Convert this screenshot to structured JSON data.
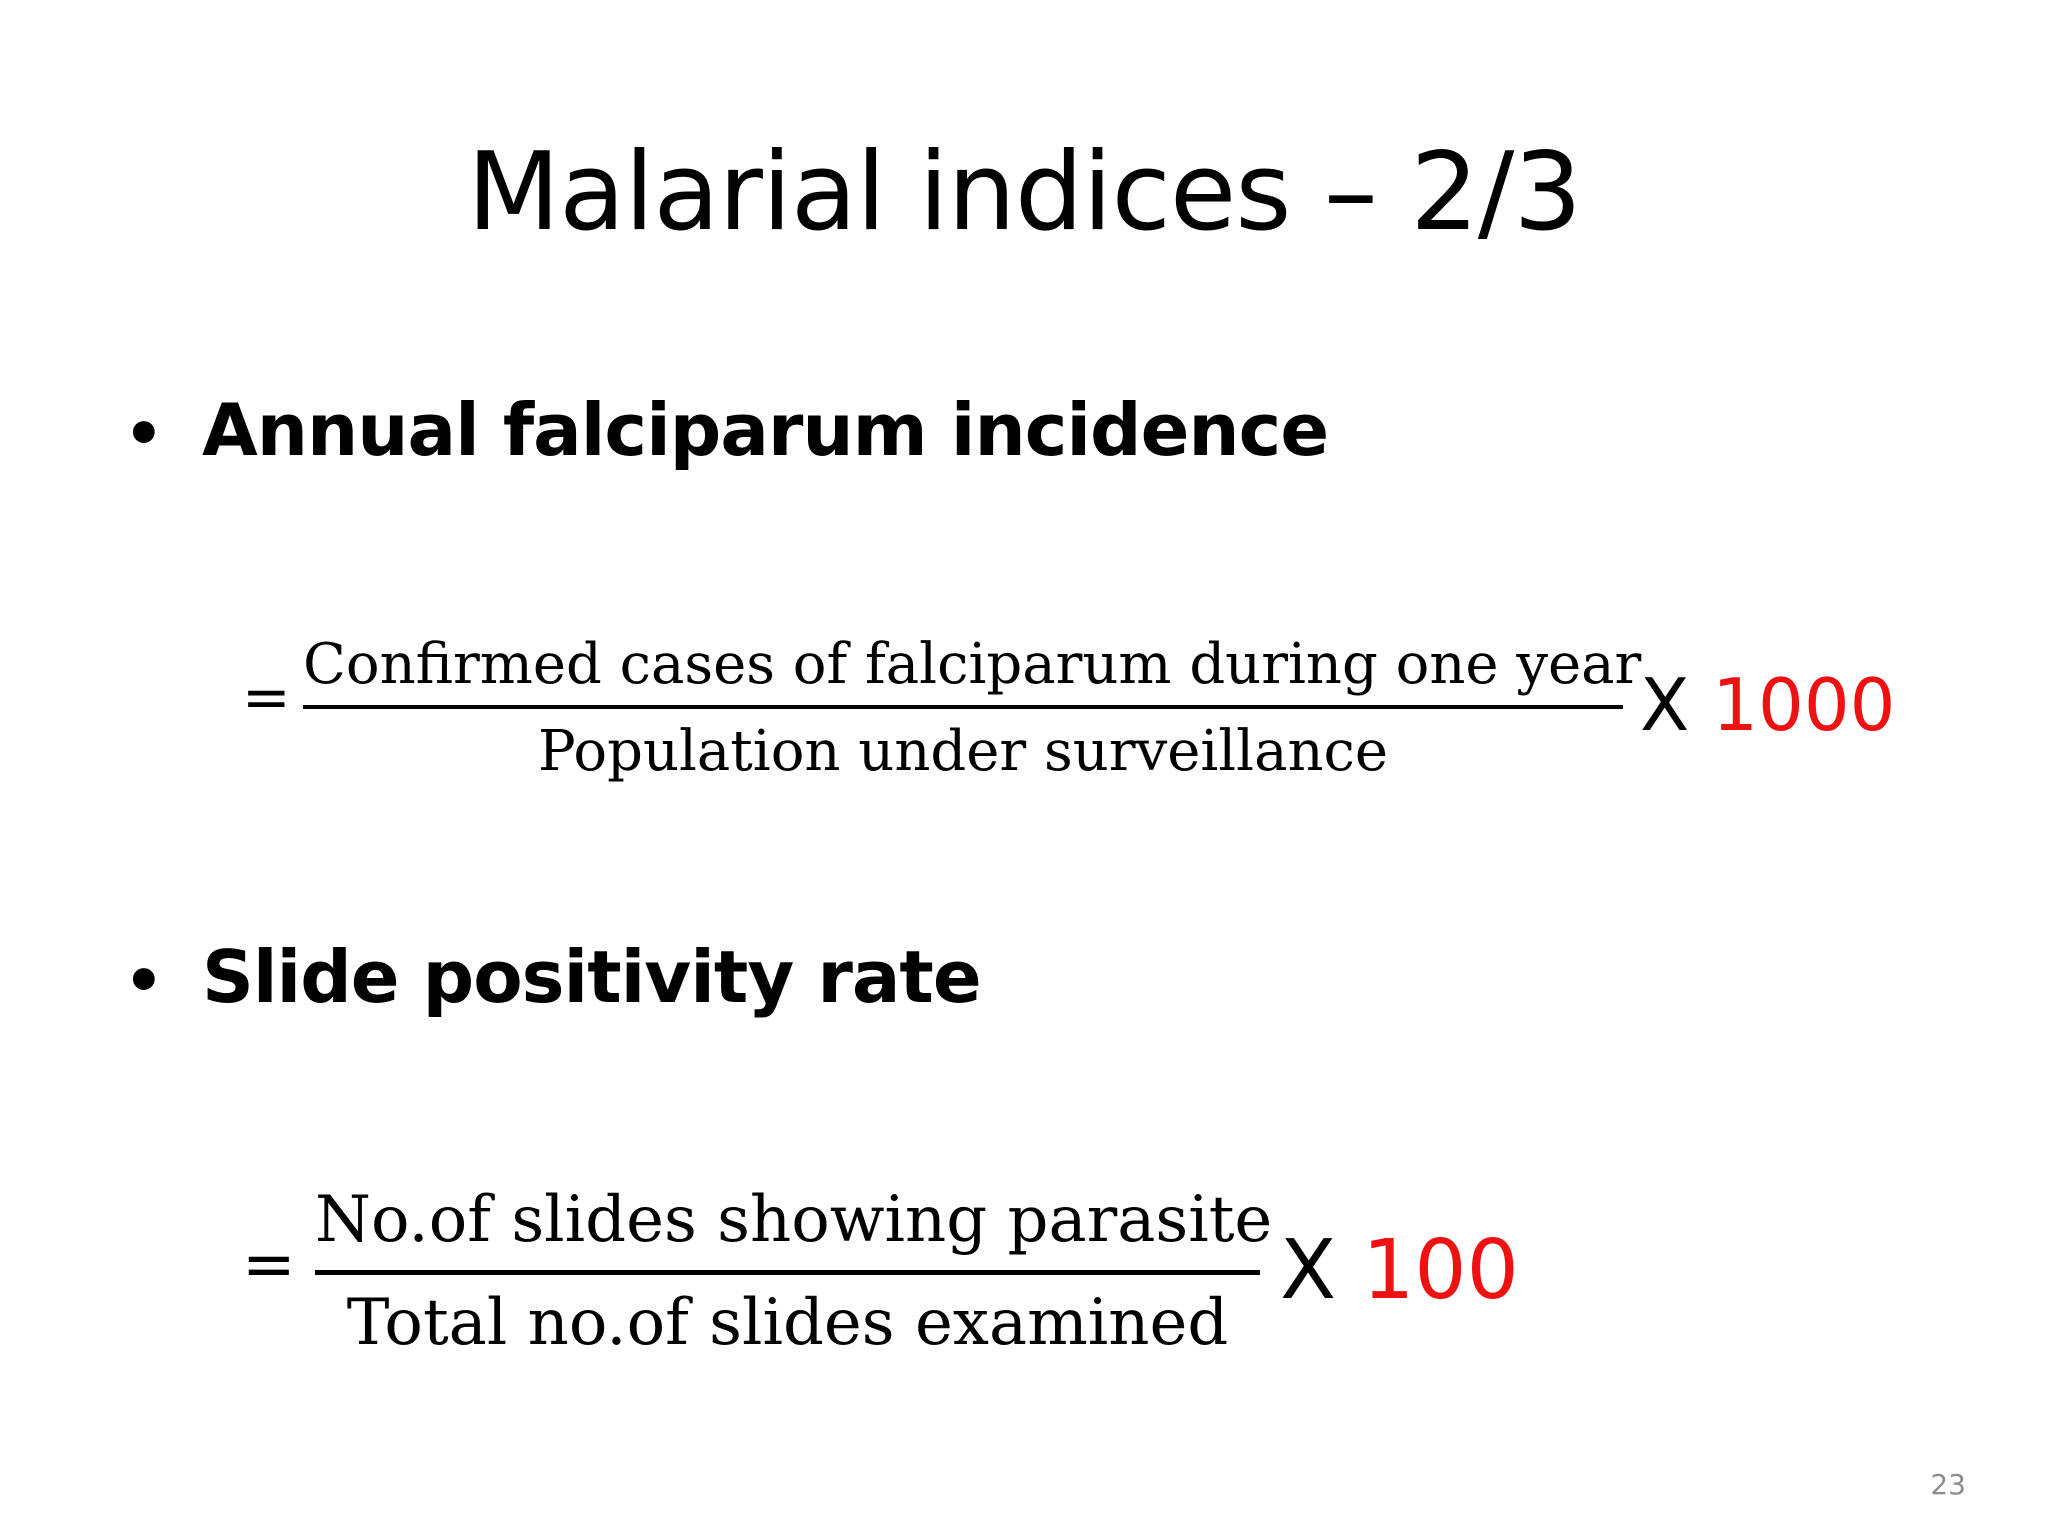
{
  "slide": {
    "title": "Malarial indices – 2/3",
    "page_number": "23"
  },
  "bullets": [
    {
      "symbol": "•",
      "label": "Annual falciparum incidence",
      "formula": {
        "equals": "=",
        "numerator": "Confirmed cases of falciparum during one year",
        "denominator": "Population under surveillance",
        "times": "X",
        "factor": "1000"
      }
    },
    {
      "symbol": "•",
      "label": "Slide positivity rate",
      "formula": {
        "equals": "=",
        "numerator": "No.of slides showing parasite",
        "denominator": "Total no.of slides examined",
        "times": "X",
        "factor": "100"
      }
    }
  ],
  "colors": {
    "factor": "#ee1111",
    "text": "#000000",
    "page_number": "#8c8c8c"
  }
}
